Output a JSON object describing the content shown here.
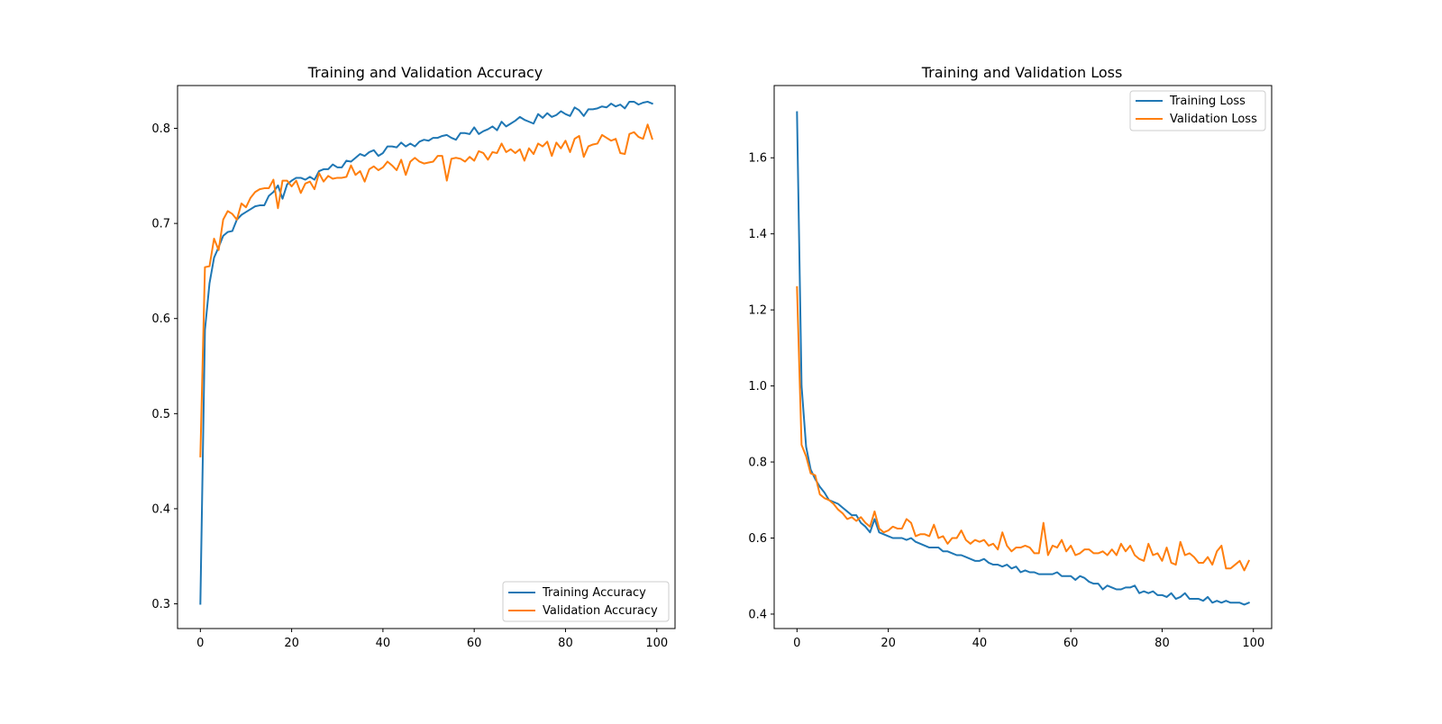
{
  "figure": {
    "background": "#ffffff"
  },
  "colors": {
    "train": "#1f77b4",
    "val": "#ff7f0e"
  },
  "chart_data": [
    {
      "type": "line",
      "title": "Training and Validation Accuracy",
      "xlabel": "",
      "ylabel": "",
      "xlim": [
        -5,
        104
      ],
      "ylim": [
        0.274,
        0.845
      ],
      "xticks": [
        0,
        20,
        40,
        60,
        80,
        100
      ],
      "yticks": [
        0.3,
        0.4,
        0.5,
        0.6,
        0.7,
        0.8
      ],
      "grid": false,
      "legend_position": "lower-right",
      "series": [
        {
          "name": "Training Accuracy",
          "color": "#1f77b4",
          "x": [
            0,
            1,
            2,
            3,
            4,
            5,
            6,
            7,
            8,
            9,
            10,
            11,
            12,
            13,
            14,
            15,
            16,
            17,
            18,
            19,
            20,
            21,
            22,
            23,
            24,
            25,
            26,
            27,
            28,
            29,
            30,
            31,
            32,
            33,
            34,
            35,
            36,
            37,
            38,
            39,
            40,
            41,
            42,
            43,
            44,
            45,
            46,
            47,
            48,
            49,
            50,
            51,
            52,
            53,
            54,
            55,
            56,
            57,
            58,
            59,
            60,
            61,
            62,
            63,
            64,
            65,
            66,
            67,
            68,
            69,
            70,
            71,
            72,
            73,
            74,
            75,
            76,
            77,
            78,
            79,
            80,
            81,
            82,
            83,
            84,
            85,
            86,
            87,
            88,
            89,
            90,
            91,
            92,
            93,
            94,
            95,
            96,
            97,
            98,
            99
          ],
          "values": [
            0.3,
            0.588,
            0.637,
            0.664,
            0.675,
            0.687,
            0.691,
            0.692,
            0.704,
            0.709,
            0.712,
            0.715,
            0.718,
            0.719,
            0.719,
            0.729,
            0.733,
            0.74,
            0.726,
            0.741,
            0.745,
            0.748,
            0.748,
            0.746,
            0.749,
            0.746,
            0.755,
            0.757,
            0.757,
            0.762,
            0.759,
            0.759,
            0.766,
            0.765,
            0.769,
            0.773,
            0.771,
            0.775,
            0.777,
            0.771,
            0.774,
            0.781,
            0.781,
            0.78,
            0.785,
            0.781,
            0.784,
            0.781,
            0.786,
            0.788,
            0.787,
            0.79,
            0.79,
            0.792,
            0.793,
            0.79,
            0.788,
            0.795,
            0.795,
            0.794,
            0.801,
            0.794,
            0.797,
            0.799,
            0.802,
            0.798,
            0.807,
            0.802,
            0.805,
            0.808,
            0.812,
            0.809,
            0.807,
            0.805,
            0.815,
            0.811,
            0.816,
            0.812,
            0.814,
            0.818,
            0.815,
            0.813,
            0.822,
            0.819,
            0.813,
            0.82,
            0.82,
            0.821,
            0.823,
            0.822,
            0.826,
            0.823,
            0.825,
            0.821,
            0.828,
            0.828,
            0.825,
            0.827,
            0.828,
            0.826
          ]
        },
        {
          "name": "Validation Accuracy",
          "color": "#ff7f0e",
          "x": [
            0,
            1,
            2,
            3,
            4,
            5,
            6,
            7,
            8,
            9,
            10,
            11,
            12,
            13,
            14,
            15,
            16,
            17,
            18,
            19,
            20,
            21,
            22,
            23,
            24,
            25,
            26,
            27,
            28,
            29,
            30,
            31,
            32,
            33,
            34,
            35,
            36,
            37,
            38,
            39,
            40,
            41,
            42,
            43,
            44,
            45,
            46,
            47,
            48,
            49,
            50,
            51,
            52,
            53,
            54,
            55,
            56,
            57,
            58,
            59,
            60,
            61,
            62,
            63,
            64,
            65,
            66,
            67,
            68,
            69,
            70,
            71,
            72,
            73,
            74,
            75,
            76,
            77,
            78,
            79,
            80,
            81,
            82,
            83,
            84,
            85,
            86,
            87,
            88,
            89,
            90,
            91,
            92,
            93,
            94,
            95,
            96,
            97,
            98,
            99
          ],
          "values": [
            0.455,
            0.654,
            0.655,
            0.684,
            0.672,
            0.704,
            0.713,
            0.71,
            0.704,
            0.721,
            0.717,
            0.727,
            0.733,
            0.736,
            0.737,
            0.737,
            0.746,
            0.716,
            0.745,
            0.745,
            0.739,
            0.745,
            0.732,
            0.742,
            0.744,
            0.736,
            0.753,
            0.744,
            0.75,
            0.747,
            0.748,
            0.748,
            0.749,
            0.761,
            0.751,
            0.755,
            0.744,
            0.757,
            0.76,
            0.756,
            0.759,
            0.765,
            0.761,
            0.756,
            0.767,
            0.751,
            0.765,
            0.769,
            0.765,
            0.763,
            0.764,
            0.765,
            0.771,
            0.771,
            0.745,
            0.768,
            0.769,
            0.768,
            0.765,
            0.77,
            0.766,
            0.776,
            0.774,
            0.767,
            0.775,
            0.774,
            0.784,
            0.775,
            0.778,
            0.774,
            0.778,
            0.766,
            0.779,
            0.773,
            0.784,
            0.781,
            0.786,
            0.771,
            0.785,
            0.779,
            0.787,
            0.775,
            0.789,
            0.792,
            0.77,
            0.781,
            0.783,
            0.784,
            0.793,
            0.79,
            0.787,
            0.789,
            0.774,
            0.773,
            0.794,
            0.796,
            0.791,
            0.789,
            0.804,
            0.789
          ]
        }
      ]
    },
    {
      "type": "line",
      "title": "Training and Validation Loss",
      "xlabel": "",
      "ylabel": "",
      "xlim": [
        -5,
        104
      ],
      "ylim": [
        0.362,
        1.79
      ],
      "xticks": [
        0,
        20,
        40,
        60,
        80,
        100
      ],
      "yticks": [
        0.4,
        0.6,
        0.8,
        1.0,
        1.2,
        1.4,
        1.6
      ],
      "grid": false,
      "legend_position": "upper-right",
      "series": [
        {
          "name": "Training Loss",
          "color": "#1f77b4",
          "x": [
            0,
            1,
            2,
            3,
            4,
            5,
            6,
            7,
            8,
            9,
            10,
            11,
            12,
            13,
            14,
            15,
            16,
            17,
            18,
            19,
            20,
            21,
            22,
            23,
            24,
            25,
            26,
            27,
            28,
            29,
            30,
            31,
            32,
            33,
            34,
            35,
            36,
            37,
            38,
            39,
            40,
            41,
            42,
            43,
            44,
            45,
            46,
            47,
            48,
            49,
            50,
            51,
            52,
            53,
            54,
            55,
            56,
            57,
            58,
            59,
            60,
            61,
            62,
            63,
            64,
            65,
            66,
            67,
            68,
            69,
            70,
            71,
            72,
            73,
            74,
            75,
            76,
            77,
            78,
            79,
            80,
            81,
            82,
            83,
            84,
            85,
            86,
            87,
            88,
            89,
            90,
            91,
            92,
            93,
            94,
            95,
            96,
            97,
            98,
            99
          ],
          "values": [
            1.72,
            1.0,
            0.84,
            0.78,
            0.755,
            0.735,
            0.72,
            0.7,
            0.695,
            0.69,
            0.68,
            0.67,
            0.66,
            0.66,
            0.64,
            0.63,
            0.615,
            0.65,
            0.615,
            0.61,
            0.605,
            0.6,
            0.6,
            0.6,
            0.595,
            0.6,
            0.59,
            0.585,
            0.58,
            0.575,
            0.575,
            0.575,
            0.565,
            0.565,
            0.56,
            0.555,
            0.555,
            0.55,
            0.545,
            0.54,
            0.54,
            0.545,
            0.535,
            0.53,
            0.53,
            0.525,
            0.53,
            0.52,
            0.525,
            0.51,
            0.515,
            0.51,
            0.51,
            0.505,
            0.505,
            0.505,
            0.505,
            0.51,
            0.5,
            0.5,
            0.5,
            0.49,
            0.5,
            0.495,
            0.485,
            0.48,
            0.48,
            0.465,
            0.475,
            0.47,
            0.465,
            0.465,
            0.47,
            0.47,
            0.475,
            0.455,
            0.46,
            0.455,
            0.46,
            0.45,
            0.45,
            0.445,
            0.455,
            0.44,
            0.445,
            0.455,
            0.44,
            0.44,
            0.44,
            0.435,
            0.445,
            0.43,
            0.435,
            0.43,
            0.435,
            0.43,
            0.43,
            0.43,
            0.425,
            0.43
          ]
        },
        {
          "name": "Validation Loss",
          "color": "#ff7f0e",
          "x": [
            0,
            1,
            2,
            3,
            4,
            5,
            6,
            7,
            8,
            9,
            10,
            11,
            12,
            13,
            14,
            15,
            16,
            17,
            18,
            19,
            20,
            21,
            22,
            23,
            24,
            25,
            26,
            27,
            28,
            29,
            30,
            31,
            32,
            33,
            34,
            35,
            36,
            37,
            38,
            39,
            40,
            41,
            42,
            43,
            44,
            45,
            46,
            47,
            48,
            49,
            50,
            51,
            52,
            53,
            54,
            55,
            56,
            57,
            58,
            59,
            60,
            61,
            62,
            63,
            64,
            65,
            66,
            67,
            68,
            69,
            70,
            71,
            72,
            73,
            74,
            75,
            76,
            77,
            78,
            79,
            80,
            81,
            82,
            83,
            84,
            85,
            86,
            87,
            88,
            89,
            90,
            91,
            92,
            93,
            94,
            95,
            96,
            97,
            98,
            99
          ],
          "values": [
            1.26,
            0.845,
            0.815,
            0.77,
            0.765,
            0.715,
            0.705,
            0.7,
            0.69,
            0.675,
            0.665,
            0.65,
            0.655,
            0.645,
            0.655,
            0.64,
            0.63,
            0.67,
            0.625,
            0.615,
            0.62,
            0.63,
            0.625,
            0.625,
            0.65,
            0.64,
            0.605,
            0.61,
            0.61,
            0.605,
            0.635,
            0.6,
            0.605,
            0.585,
            0.6,
            0.6,
            0.62,
            0.595,
            0.585,
            0.595,
            0.59,
            0.595,
            0.58,
            0.585,
            0.57,
            0.615,
            0.58,
            0.565,
            0.575,
            0.575,
            0.58,
            0.575,
            0.56,
            0.56,
            0.64,
            0.555,
            0.58,
            0.575,
            0.595,
            0.565,
            0.58,
            0.555,
            0.56,
            0.57,
            0.57,
            0.56,
            0.56,
            0.565,
            0.555,
            0.57,
            0.555,
            0.585,
            0.565,
            0.58,
            0.555,
            0.545,
            0.54,
            0.585,
            0.555,
            0.56,
            0.54,
            0.575,
            0.535,
            0.53,
            0.59,
            0.555,
            0.56,
            0.55,
            0.535,
            0.535,
            0.55,
            0.53,
            0.565,
            0.58,
            0.52,
            0.52,
            0.53,
            0.54,
            0.515,
            0.54
          ]
        }
      ]
    }
  ]
}
